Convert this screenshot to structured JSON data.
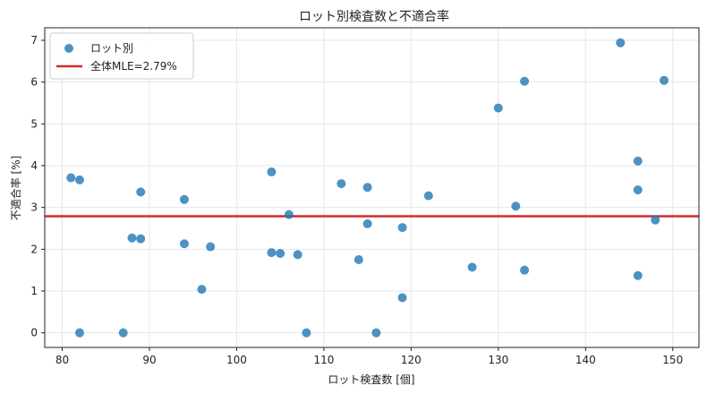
{
  "chart_data": {
    "type": "scatter",
    "title": "ロット別検査数と不適合率",
    "xlabel": "ロット検査数 [個]",
    "ylabel": "不適合率 [%]",
    "xlim": [
      78,
      153
    ],
    "ylim": [
      -0.35,
      7.3
    ],
    "xticks": [
      80,
      90,
      100,
      110,
      120,
      130,
      140,
      150
    ],
    "yticks": [
      0,
      1,
      2,
      3,
      4,
      5,
      6,
      7
    ],
    "grid": true,
    "legend_position": "top-left",
    "series": [
      {
        "name": "ロット別",
        "kind": "scatter",
        "color": "#1f77b4",
        "points": [
          {
            "x": 81,
            "y": 3.71
          },
          {
            "x": 82,
            "y": 3.66
          },
          {
            "x": 82,
            "y": 0.0
          },
          {
            "x": 87,
            "y": 0.0
          },
          {
            "x": 88,
            "y": 2.27
          },
          {
            "x": 89,
            "y": 3.37
          },
          {
            "x": 89,
            "y": 2.25
          },
          {
            "x": 94,
            "y": 3.19
          },
          {
            "x": 94,
            "y": 2.13
          },
          {
            "x": 96,
            "y": 1.04
          },
          {
            "x": 97,
            "y": 2.06
          },
          {
            "x": 104,
            "y": 3.85
          },
          {
            "x": 104,
            "y": 1.92
          },
          {
            "x": 105,
            "y": 1.9
          },
          {
            "x": 106,
            "y": 2.83
          },
          {
            "x": 107,
            "y": 1.87
          },
          {
            "x": 108,
            "y": 0.0
          },
          {
            "x": 112,
            "y": 3.57
          },
          {
            "x": 114,
            "y": 1.75
          },
          {
            "x": 115,
            "y": 3.48
          },
          {
            "x": 115,
            "y": 2.61
          },
          {
            "x": 116,
            "y": 0.0
          },
          {
            "x": 119,
            "y": 2.52
          },
          {
            "x": 119,
            "y": 0.84
          },
          {
            "x": 122,
            "y": 3.28
          },
          {
            "x": 127,
            "y": 1.57
          },
          {
            "x": 130,
            "y": 5.38
          },
          {
            "x": 132,
            "y": 3.03
          },
          {
            "x": 133,
            "y": 6.02
          },
          {
            "x": 133,
            "y": 1.5
          },
          {
            "x": 144,
            "y": 6.94
          },
          {
            "x": 146,
            "y": 4.11
          },
          {
            "x": 146,
            "y": 3.42
          },
          {
            "x": 146,
            "y": 1.37
          },
          {
            "x": 148,
            "y": 2.7
          },
          {
            "x": 149,
            "y": 6.04
          }
        ]
      },
      {
        "name": "全体MLE=2.79%",
        "kind": "hline",
        "color": "#d62728",
        "y": 2.79
      }
    ]
  }
}
